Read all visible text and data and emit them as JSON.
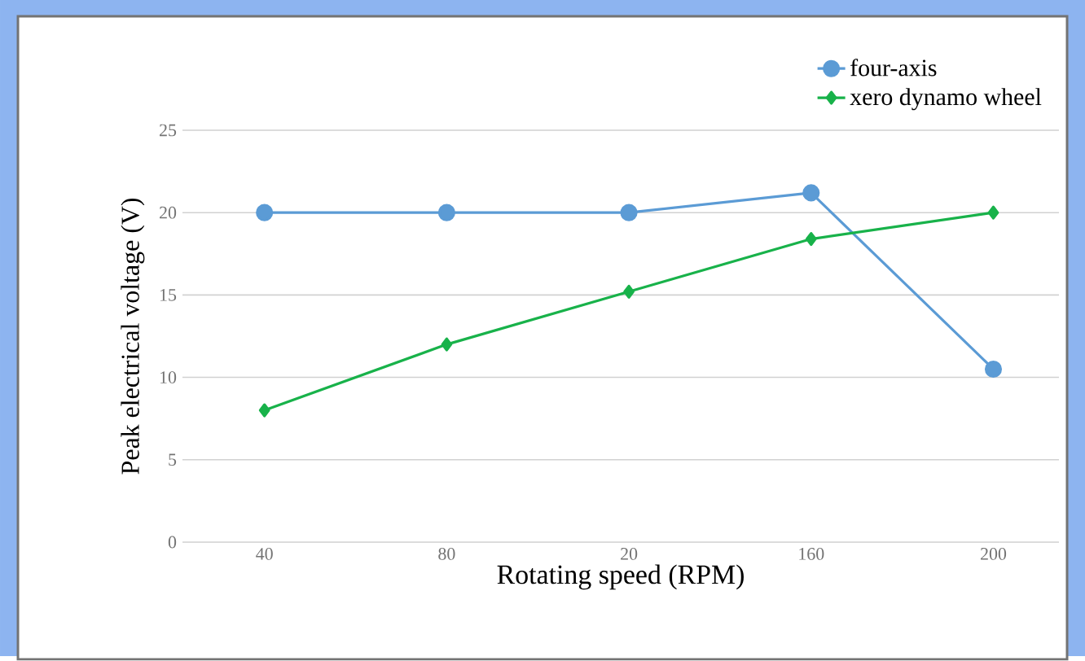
{
  "chart_data": {
    "type": "line",
    "xlabel": "Rotating speed (RPM)",
    "ylabel": "Peak electrical voltage (V)",
    "categories": [
      "40",
      "80",
      "20",
      "160",
      "200"
    ],
    "series": [
      {
        "name": "four-axis",
        "color": "#5b9bd5",
        "marker": "circle",
        "values": [
          20,
          20,
          20,
          21.2,
          10.5
        ]
      },
      {
        "name": "xero dynamo wheel",
        "color": "#18b24a",
        "marker": "diamond",
        "values": [
          8,
          12,
          15.2,
          18.4,
          20
        ]
      }
    ],
    "ylim": [
      0,
      25
    ],
    "yticks": [
      0,
      5,
      10,
      15,
      20,
      25
    ],
    "grid": "y",
    "legend": "top right",
    "line_style": "solid"
  }
}
